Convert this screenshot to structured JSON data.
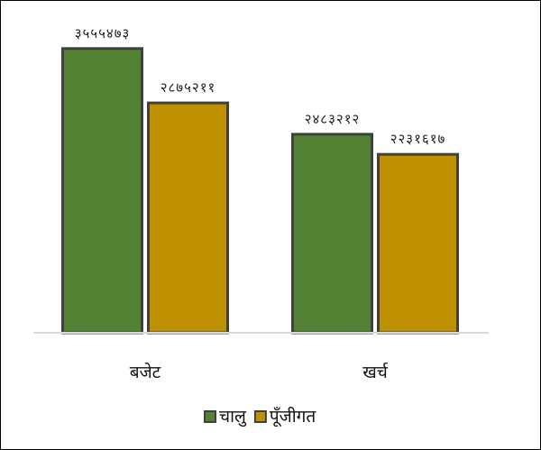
{
  "chart_data": {
    "type": "bar",
    "categories": [
      "बजेट",
      "खर्च"
    ],
    "series": [
      {
        "name": "चालु",
        "values": [
          3555473,
          2483212
        ],
        "labels": [
          "३५५५४७३",
          "२४८३२१२"
        ],
        "color": "#548235"
      },
      {
        "name": "पूँजीगत",
        "values": [
          2875211,
          2231617
        ],
        "labels": [
          "२८७५२११",
          "२२३१६१७"
        ],
        "color": "#BF9000"
      }
    ],
    "title": "",
    "xlabel": "",
    "ylabel": "",
    "ylim": [
      0,
      3700000
    ],
    "grid": false,
    "legend_position": "bottom",
    "bar_border_color": "#404040",
    "baseline_color": "#d9d9d9"
  }
}
